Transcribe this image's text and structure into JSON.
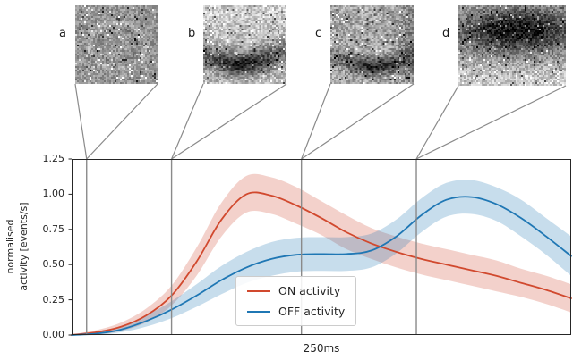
{
  "figure": {
    "panels": [
      {
        "label": "a",
        "marker_x": 0.03
      },
      {
        "label": "b",
        "marker_x": 0.2
      },
      {
        "label": "c",
        "marker_x": 0.46
      },
      {
        "label": "d",
        "marker_x": 0.69
      }
    ]
  },
  "chart_data": {
    "type": "line",
    "title": "",
    "xlabel": "250ms",
    "ylabel": "normalised activity [events/s]",
    "ylabel_lines": [
      "normalised",
      "activity [events/s]"
    ],
    "ylim": [
      0,
      1.25
    ],
    "yticks": [
      0.0,
      0.25,
      0.5,
      0.75,
      1.0,
      1.25
    ],
    "grid": false,
    "legend_position": "lower center",
    "marker_color": "#8a8a8a",
    "markers_x": [
      0.03,
      0.2,
      0.46,
      0.69
    ],
    "x": [
      0,
      0.05,
      0.1,
      0.15,
      0.2,
      0.25,
      0.3,
      0.35,
      0.4,
      0.45,
      0.5,
      0.55,
      0.6,
      0.65,
      0.7,
      0.75,
      0.8,
      0.85,
      0.9,
      0.95,
      1.0
    ],
    "series": [
      {
        "key": "on-activity",
        "name": "ON activity",
        "color": "#d1492e",
        "values": [
          0,
          0.02,
          0.06,
          0.14,
          0.28,
          0.52,
          0.82,
          1.0,
          0.99,
          0.92,
          0.83,
          0.73,
          0.65,
          0.59,
          0.54,
          0.5,
          0.46,
          0.42,
          0.37,
          0.32,
          0.26
        ],
        "band": [
          0.005,
          0.015,
          0.03,
          0.05,
          0.07,
          0.1,
          0.12,
          0.13,
          0.13,
          0.13,
          0.12,
          0.12,
          0.11,
          0.11,
          0.11,
          0.11,
          0.11,
          0.11,
          0.1,
          0.1,
          0.1
        ]
      },
      {
        "key": "off-activity",
        "name": "OFF activity",
        "color": "#1f77b4",
        "values": [
          0,
          0.01,
          0.04,
          0.1,
          0.18,
          0.28,
          0.39,
          0.48,
          0.54,
          0.57,
          0.575,
          0.575,
          0.6,
          0.7,
          0.85,
          0.96,
          0.98,
          0.93,
          0.83,
          0.7,
          0.56
        ],
        "band": [
          0.005,
          0.01,
          0.02,
          0.04,
          0.06,
          0.08,
          0.1,
          0.11,
          0.12,
          0.12,
          0.12,
          0.12,
          0.12,
          0.12,
          0.12,
          0.12,
          0.12,
          0.12,
          0.13,
          0.13,
          0.14
        ]
      }
    ]
  }
}
